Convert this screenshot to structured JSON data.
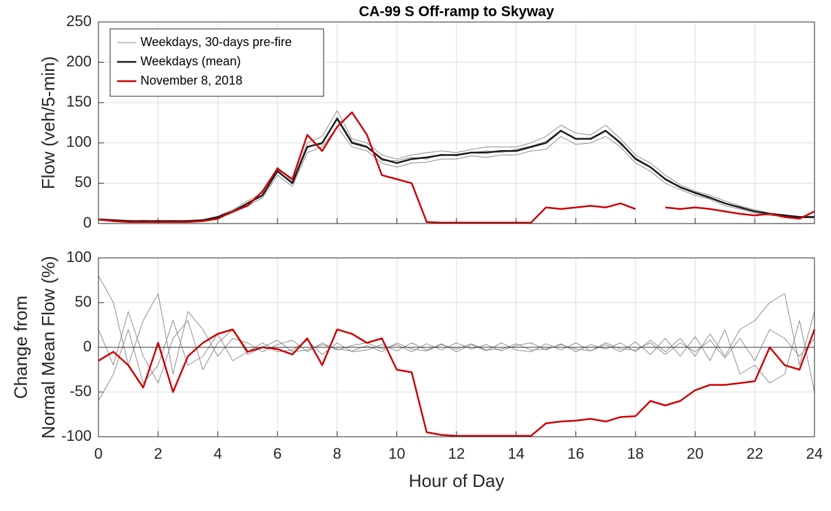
{
  "chart_data": [
    {
      "type": "line",
      "title": "CA-99 S Off-ramp to Skyway",
      "ylabel": [
        "Flow (veh/5-min)"
      ],
      "grid": true,
      "legend": "upper left",
      "x": [
        0,
        0.5,
        1,
        1.5,
        2,
        2.5,
        3,
        3.5,
        4,
        4.5,
        5,
        5.5,
        6,
        6.5,
        7,
        7.5,
        8,
        8.5,
        9,
        9.5,
        10,
        10.5,
        11,
        11.5,
        12,
        12.5,
        13,
        13.5,
        14,
        14.5,
        15,
        15.5,
        16,
        16.5,
        17,
        17.5,
        18,
        18.5,
        19,
        19.5,
        20,
        20.5,
        21,
        21.5,
        22,
        22.5,
        23,
        23.5,
        24
      ],
      "xlim": [
        0,
        24
      ],
      "xticks": [
        0,
        2,
        4,
        6,
        8,
        10,
        12,
        14,
        16,
        18,
        20,
        22,
        24
      ],
      "ylim": [
        0,
        250
      ],
      "yticks": [
        0,
        50,
        100,
        150,
        200,
        250
      ],
      "series": [
        {
          "name": "Weekdays, 30-days pre-fire",
          "color": "#8c8c8c",
          "width": 1,
          "values": [
            6,
            5,
            4,
            3,
            4,
            3,
            4,
            5,
            9,
            17,
            28,
            38,
            70,
            52,
            100,
            108,
            140,
            105,
            100,
            85,
            80,
            85,
            88,
            90,
            88,
            92,
            95,
            95,
            95,
            100,
            108,
            122,
            112,
            110,
            122,
            105,
            85,
            75,
            60,
            48,
            40,
            35,
            28,
            22,
            17,
            13,
            11,
            9,
            9
          ]
        },
        {
          "name": "Weekdays, 30-days pre-fire",
          "color": "#8c8c8c",
          "width": 1,
          "values": [
            4,
            3,
            2,
            2,
            2,
            2,
            2,
            3,
            7,
            13,
            22,
            32,
            60,
            46,
            88,
            95,
            120,
            95,
            90,
            75,
            70,
            75,
            76,
            80,
            80,
            84,
            82,
            85,
            85,
            90,
            92,
            108,
            98,
            100,
            108,
            95,
            75,
            65,
            50,
            42,
            35,
            30,
            22,
            18,
            13,
            10,
            9,
            7,
            7
          ]
        },
        {
          "name": "Weekdays, 30-days pre-fire",
          "color": "#8c8c8c",
          "width": 1,
          "values": [
            5,
            4,
            3,
            4,
            3,
            4,
            3,
            4,
            8,
            14,
            26,
            36,
            66,
            50,
            96,
            98,
            132,
            102,
            96,
            78,
            78,
            82,
            80,
            86,
            84,
            88,
            90,
            88,
            92,
            96,
            102,
            116,
            104,
            106,
            116,
            98,
            82,
            70,
            56,
            46,
            39,
            33,
            25,
            21,
            15,
            12,
            10,
            8,
            8
          ]
        },
        {
          "name": "Weekdays (mean)",
          "color": "#1a1a1a",
          "width": 2.5,
          "values": [
            5,
            4,
            3,
            3,
            3,
            3,
            3,
            4,
            8,
            15,
            25,
            35,
            65,
            50,
            95,
            100,
            130,
            100,
            95,
            80,
            75,
            80,
            82,
            85,
            85,
            88,
            88,
            90,
            90,
            95,
            100,
            115,
            105,
            105,
            115,
            100,
            80,
            70,
            55,
            45,
            38,
            32,
            25,
            20,
            15,
            12,
            10,
            8,
            8
          ]
        },
        {
          "name": "November 8, 2018",
          "color": "#cc0000",
          "width": 2.5,
          "values": [
            5,
            3,
            2,
            2,
            2,
            2,
            2,
            3,
            6,
            15,
            22,
            40,
            68,
            55,
            110,
            90,
            120,
            138,
            110,
            60,
            55,
            50,
            2,
            1,
            1,
            1,
            1,
            1,
            1,
            1,
            20,
            18,
            20,
            22,
            20,
            25,
            18,
            null,
            20,
            18,
            20,
            18,
            15,
            12,
            10,
            12,
            8,
            6,
            15
          ]
        }
      ]
    },
    {
      "type": "line",
      "xlabel": "Hour of Day",
      "ylabel": [
        "Change from",
        "Normal Mean Flow (%)"
      ],
      "grid": true,
      "x": [
        0,
        0.5,
        1,
        1.5,
        2,
        2.5,
        3,
        3.5,
        4,
        4.5,
        5,
        5.5,
        6,
        6.5,
        7,
        7.5,
        8,
        8.5,
        9,
        9.5,
        10,
        10.5,
        11,
        11.5,
        12,
        12.5,
        13,
        13.5,
        14,
        14.5,
        15,
        15.5,
        16,
        16.5,
        17,
        17.5,
        18,
        18.5,
        19,
        19.5,
        20,
        20.5,
        21,
        21.5,
        22,
        22.5,
        23,
        23.5,
        24
      ],
      "xlim": [
        0,
        24
      ],
      "xticks": [
        0,
        2,
        4,
        6,
        8,
        10,
        12,
        14,
        16,
        18,
        20,
        22,
        24
      ],
      "ylim": [
        -100,
        100
      ],
      "yticks": [
        -100,
        -50,
        0,
        50,
        100
      ],
      "series": [
        {
          "color": "#8c8c8c",
          "width": 1,
          "values": [
            80,
            50,
            -20,
            30,
            60,
            -30,
            40,
            20,
            -10,
            10,
            5,
            -5,
            3,
            8,
            -5,
            5,
            -3,
            2,
            5,
            -2,
            3,
            -5,
            4,
            -3,
            5,
            -2,
            3,
            -4,
            2,
            5,
            -3,
            4,
            -5,
            3,
            -2,
            5,
            -5,
            8,
            -5,
            10,
            -10,
            15,
            -10,
            20,
            30,
            50,
            60,
            -20,
            40
          ]
        },
        {
          "color": "#8c8c8c",
          "width": 1,
          "values": [
            -60,
            -30,
            20,
            -40,
            -20,
            30,
            -20,
            -10,
            15,
            -15,
            -5,
            5,
            -5,
            -3,
            8,
            -8,
            5,
            -5,
            -3,
            3,
            -4,
            5,
            -3,
            4,
            -5,
            3,
            -4,
            5,
            -3,
            -5,
            4,
            -3,
            5,
            -4,
            3,
            -5,
            6,
            -8,
            10,
            -10,
            12,
            -15,
            20,
            -30,
            -20,
            -40,
            -30,
            30,
            -50
          ]
        },
        {
          "color": "#8c8c8c",
          "width": 1,
          "values": [
            20,
            -20,
            40,
            -10,
            -40,
            10,
            30,
            -25,
            5,
            20,
            -8,
            0,
            8,
            -5,
            -3,
            3,
            -2,
            -4,
            2,
            -5,
            5,
            -2,
            -4,
            3,
            -2,
            4,
            -3,
            -2,
            4,
            -3,
            -2,
            3,
            -2,
            -4,
            5,
            -2,
            -3,
            5,
            -8,
            5,
            -5,
            8,
            -12,
            10,
            -15,
            20,
            10,
            -10,
            10
          ]
        },
        {
          "color": "#cc0000",
          "width": 2.5,
          "values": [
            -15,
            -5,
            -20,
            -45,
            5,
            -50,
            -10,
            5,
            15,
            20,
            -5,
            0,
            -2,
            -8,
            10,
            -20,
            20,
            15,
            5,
            10,
            -25,
            -28,
            -95,
            -98,
            -99,
            -99,
            -99,
            -99,
            -99,
            -99,
            -85,
            -83,
            -82,
            -80,
            -83,
            -78,
            -77,
            -60,
            -65,
            -60,
            -48,
            -42,
            -42,
            -40,
            -38,
            0,
            -20,
            -25,
            20
          ]
        }
      ]
    }
  ]
}
